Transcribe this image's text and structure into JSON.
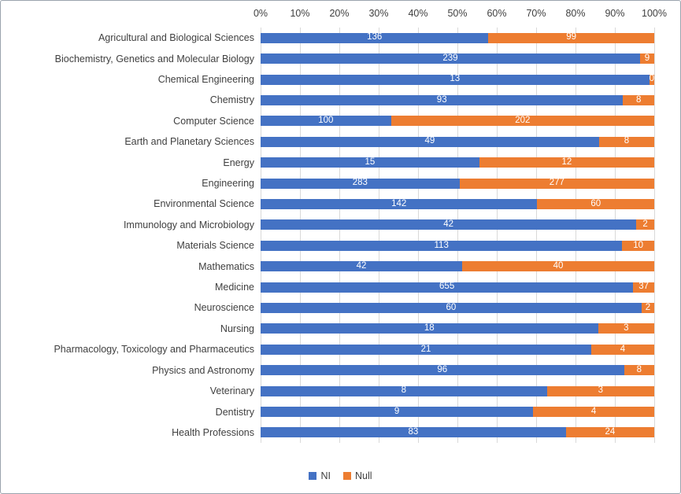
{
  "window": {
    "background": "#ffffff",
    "border_color": "#9aa3ad"
  },
  "chart_data": {
    "type": "bar",
    "orientation": "horizontal",
    "stack_mode": "percent",
    "title": "",
    "categories": [
      "Agricultural and Biological Sciences",
      "Biochemistry, Genetics and Molecular Biology",
      "Chemical Engineering",
      "Chemistry",
      "Computer Science",
      "Earth and Planetary Sciences",
      "Energy",
      "Engineering",
      "Environmental Science",
      "Immunology and Microbiology",
      "Materials Science",
      "Mathematics",
      "Medicine",
      "Neuroscience",
      "Nursing",
      "Pharmacology, Toxicology and Pharmaceutics",
      "Physics and Astronomy",
      "Veterinary",
      "Dentistry",
      "Health Professions"
    ],
    "series": [
      {
        "name": "NI",
        "color": "#4472C4",
        "values": [
          136,
          239,
          13,
          93,
          100,
          49,
          15,
          283,
          142,
          42,
          113,
          42,
          655,
          60,
          18,
          21,
          96,
          8,
          9,
          83
        ]
      },
      {
        "name": "Null",
        "color": "#ED7D31",
        "values": [
          99,
          9,
          0,
          8,
          202,
          8,
          12,
          277,
          60,
          2,
          10,
          40,
          37,
          2,
          3,
          4,
          8,
          3,
          4,
          24
        ]
      }
    ],
    "x_axis": {
      "position": "top",
      "min": 0,
      "max": 100,
      "ticks": [
        "0%",
        "10%",
        "20%",
        "30%",
        "40%",
        "50%",
        "60%",
        "70%",
        "80%",
        "90%",
        "100%"
      ]
    },
    "legend": {
      "position": "bottom",
      "entries": [
        {
          "label": "NI",
          "color": "#4472C4"
        },
        {
          "label": "Null",
          "color": "#ED7D31"
        }
      ]
    },
    "grid": true,
    "gridline_color": "#d9d9d9",
    "axis_label_color": "#404040",
    "bar_label_color": "#ffffff"
  }
}
